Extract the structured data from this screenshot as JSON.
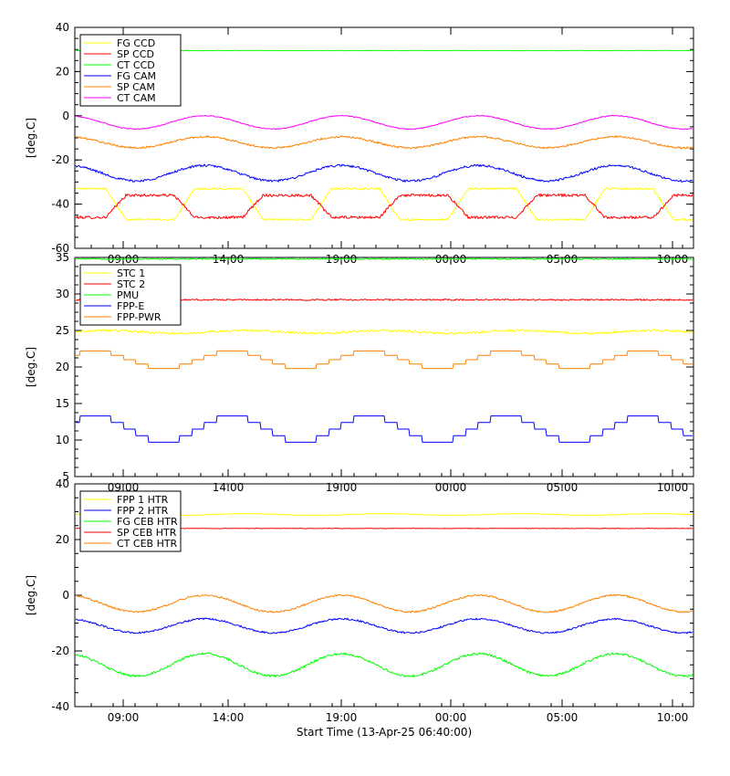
{
  "chart_data": [
    {
      "type": "line",
      "ylabel": "[deg.C]",
      "ylim": [
        -60,
        40
      ],
      "yticks": [
        40,
        20,
        0,
        -20,
        -40,
        -60
      ],
      "xticks": [
        "09:00",
        "14:00",
        "19:00",
        "00:00",
        "05:00",
        "10:00"
      ],
      "legend_position": "top-left",
      "series": [
        {
          "name": "FG CCD",
          "color": "#ffff00",
          "style": "square",
          "base": -40,
          "amp": 7,
          "period": 150,
          "phase": 0.2,
          "noise": 0.4
        },
        {
          "name": "SP CCD",
          "color": "#ff0000",
          "style": "square",
          "base": -41,
          "amp": 5,
          "period": 150,
          "phase": 0.7,
          "noise": 0.6
        },
        {
          "name": "CT CCD",
          "color": "#00ff00",
          "style": "flat",
          "base": 29.5,
          "amp": 0,
          "period": 150,
          "phase": 0,
          "noise": 0.1
        },
        {
          "name": "FG CAM",
          "color": "#0000ff",
          "style": "sine",
          "base": -26,
          "amp": 3.5,
          "period": 150,
          "phase": 0.3,
          "noise": 0.5
        },
        {
          "name": "SP CAM",
          "color": "#ff8000",
          "style": "sine",
          "base": -12,
          "amp": 2.5,
          "period": 150,
          "phase": 0.3,
          "noise": 0.4
        },
        {
          "name": "CT CAM",
          "color": "#ff00ff",
          "style": "sine",
          "base": -3,
          "amp": 3,
          "period": 150,
          "phase": 0.3,
          "noise": 0.2
        }
      ]
    },
    {
      "type": "line",
      "ylabel": "[deg.C]",
      "ylim": [
        5,
        35
      ],
      "yticks": [
        35,
        30,
        25,
        20,
        15,
        10,
        5
      ],
      "xticks": [
        "09:00",
        "14:00",
        "19:00",
        "00:00",
        "05:00",
        "10:00"
      ],
      "legend_position": "top-left",
      "series": [
        {
          "name": "STC 1",
          "color": "#ffff00",
          "style": "flat",
          "base": 24.8,
          "amp": 0.2,
          "period": 150,
          "phase": 0,
          "noise": 0.15
        },
        {
          "name": "STC 2",
          "color": "#ff0000",
          "style": "flat",
          "base": 29.2,
          "amp": 0,
          "period": 150,
          "phase": 0,
          "noise": 0.1
        },
        {
          "name": "PMU",
          "color": "#00ff00",
          "style": "flat",
          "base": 34.8,
          "amp": 0,
          "period": 150,
          "phase": 0,
          "noise": 0.1
        },
        {
          "name": "FPP-E",
          "color": "#0000ff",
          "style": "steps",
          "base": 11.5,
          "amp": 1.8,
          "period": 150,
          "phase": 0.1,
          "noise": 0
        },
        {
          "name": "FPP-PWR",
          "color": "#ff8000",
          "style": "steps",
          "base": 21,
          "amp": 1.2,
          "period": 150,
          "phase": 0.1,
          "noise": 0
        }
      ]
    },
    {
      "type": "line",
      "ylabel": "[deg.C]",
      "ylim": [
        -40,
        40
      ],
      "yticks": [
        40,
        20,
        0,
        -20,
        -40
      ],
      "xticks": [
        "09:00",
        "14:00",
        "19:00",
        "00:00",
        "05:00",
        "10:00"
      ],
      "xlabel": "Start Time (13-Apr-25 06:40:00)",
      "legend_position": "top-left",
      "series": [
        {
          "name": "FPP 1 HTR",
          "color": "#ffff00",
          "style": "flat",
          "base": 29,
          "amp": 0.3,
          "period": 150,
          "phase": 0,
          "noise": 0.1
        },
        {
          "name": "FPP 2 HTR",
          "color": "#0000ff",
          "style": "sine",
          "base": -11,
          "amp": 2.5,
          "period": 150,
          "phase": 0.3,
          "noise": 0.3
        },
        {
          "name": "FG CEB HTR",
          "color": "#00ff00",
          "style": "sine",
          "base": -25,
          "amp": 4,
          "period": 150,
          "phase": 0.3,
          "noise": 0.4
        },
        {
          "name": "SP CEB HTR",
          "color": "#ff0000",
          "style": "flat",
          "base": 24,
          "amp": 0,
          "period": 150,
          "phase": 0,
          "noise": 0.1
        },
        {
          "name": "CT CEB HTR",
          "color": "#ff8000",
          "style": "sine",
          "base": -3,
          "amp": 3,
          "period": 150,
          "phase": 0.3,
          "noise": 0.3
        }
      ]
    }
  ]
}
